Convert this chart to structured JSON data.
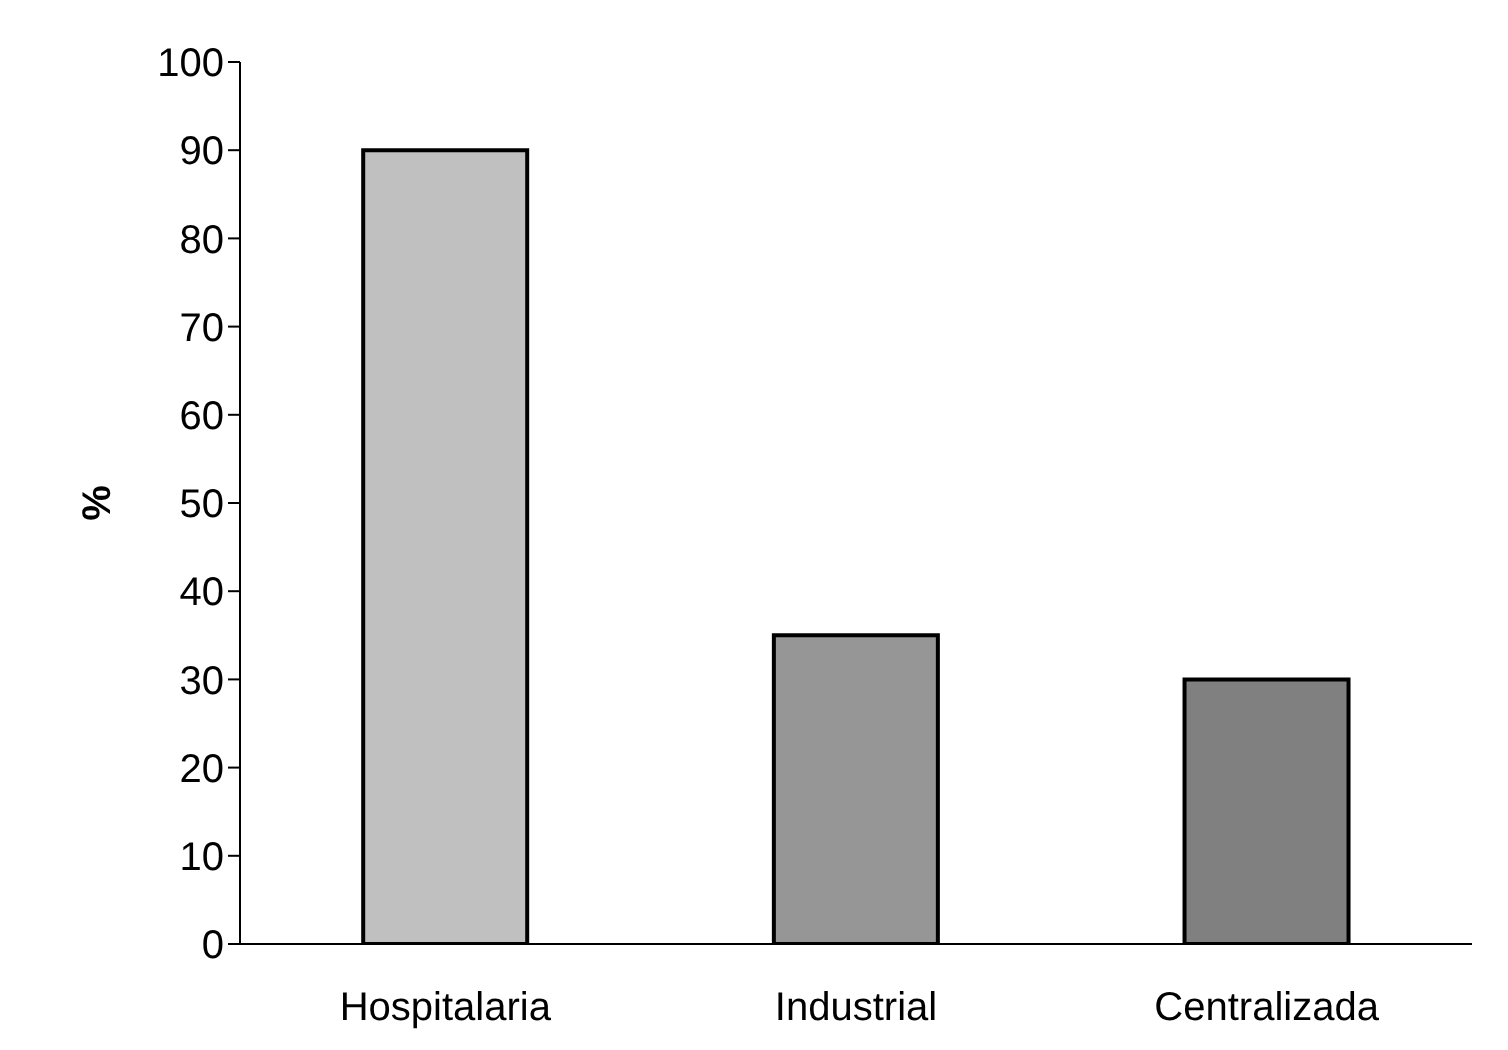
{
  "chart_data": {
    "type": "bar",
    "ylabel": "%",
    "categories": [
      "Hospitalaria",
      "Industrial",
      "Centralizada"
    ],
    "values": [
      90,
      35,
      30
    ],
    "colors": [
      "#c0c0c0",
      "#969696",
      "#808080"
    ],
    "ylim": [
      0,
      100
    ],
    "yticks": [
      0,
      10,
      20,
      30,
      40,
      50,
      60,
      70,
      80,
      90,
      100
    ],
    "grid": false,
    "legend": false
  }
}
